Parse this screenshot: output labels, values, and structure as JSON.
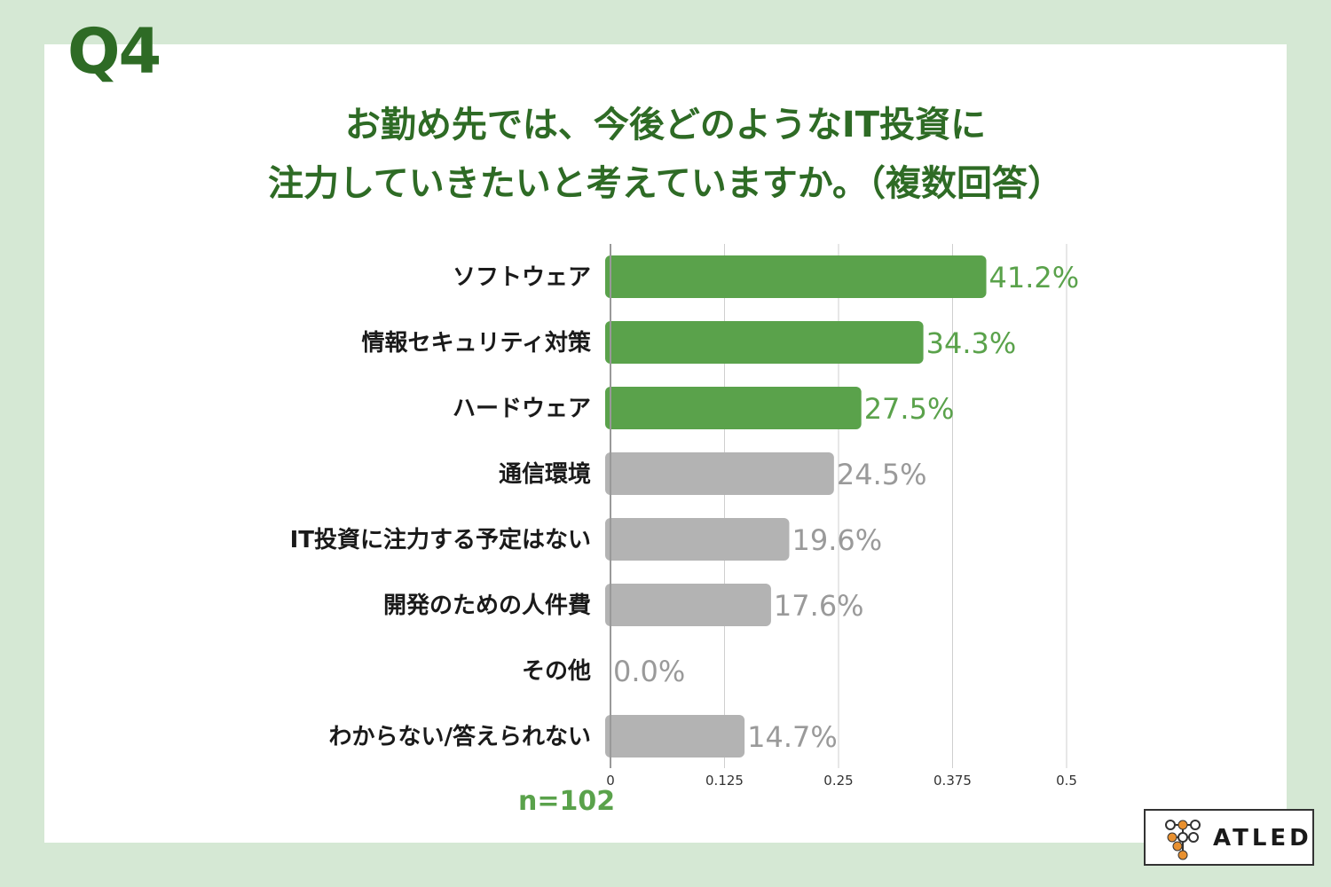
{
  "question_label": "Q4",
  "title_lines": [
    "お勤め先では、今後どのようなIT投資に",
    "注力していきたいと考えていますか。（複数回答）"
  ],
  "sample_size": "n=102",
  "brand": {
    "name": "ATLED",
    "icon": "atled-logo-icon"
  },
  "colors": {
    "highlight": "#5aa24b",
    "other": "#b3b3b3",
    "value_highlight": "#5aa24b",
    "value_other": "#9a9a9a",
    "title": "#2e6b25",
    "background": "#d5e8d4"
  },
  "chart_data": {
    "type": "bar",
    "orientation": "horizontal",
    "categories": [
      "ソフトウェア",
      "情報セキュリティ対策",
      "ハードウェア",
      "通信環境",
      "IT投資に注力する予定はない",
      "開発のための人件費",
      "その他",
      "わからない/答えられない"
    ],
    "values": [
      0.412,
      0.343,
      0.275,
      0.245,
      0.196,
      0.176,
      0.0,
      0.147
    ],
    "value_labels": [
      "41.2%",
      "34.3%",
      "27.5%",
      "24.5%",
      "19.6%",
      "17.6%",
      "0.0%",
      "14.7%"
    ],
    "highlighted": [
      true,
      true,
      true,
      false,
      false,
      false,
      false,
      false
    ],
    "xlim": [
      0,
      0.5
    ],
    "x_ticks": [
      0,
      0.125,
      0.25,
      0.375,
      0.5
    ],
    "x_tick_labels": [
      "0",
      "0.125",
      "0.25",
      "0.375",
      "0.5"
    ],
    "grid": true
  }
}
